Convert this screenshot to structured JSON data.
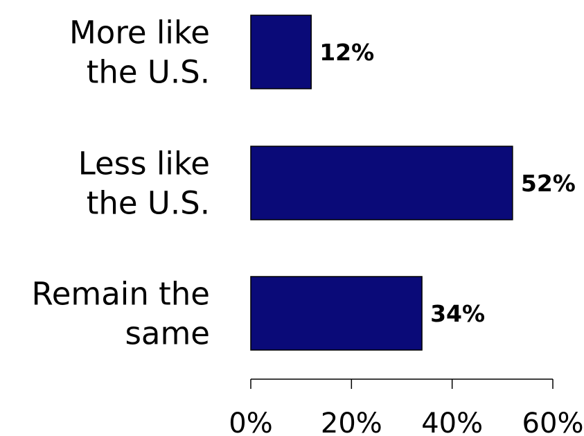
{
  "chart_data": {
    "type": "bar",
    "orientation": "horizontal",
    "categories": [
      [
        "More like",
        "the U.S."
      ],
      [
        "Less like",
        "the U.S."
      ],
      [
        "Remain the",
        "same"
      ]
    ],
    "values": [
      12,
      52,
      34
    ],
    "data_labels": [
      "12%",
      "52%",
      "34%"
    ],
    "bar_color": "#0a0a78",
    "bar_edge_color": "#000000",
    "xlim": [
      0,
      60
    ],
    "xticks": [
      0,
      20,
      40,
      60
    ],
    "xtick_labels": [
      "0%",
      "20%",
      "40%",
      "60%"
    ],
    "grid": false,
    "legend": "none",
    "title": "",
    "xlabel": "",
    "ylabel": ""
  }
}
